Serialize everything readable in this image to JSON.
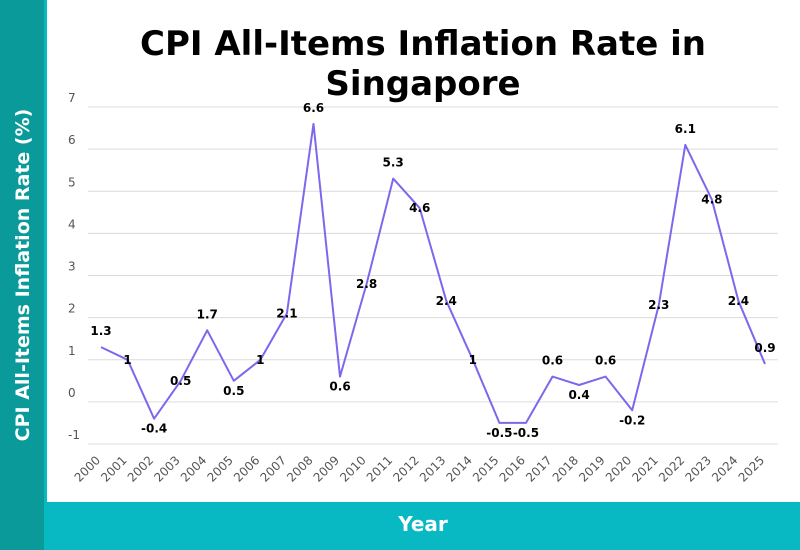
{
  "chart_data": {
    "type": "line",
    "title": "CPI All-Items Inflation Rate in Singapore",
    "xlabel": "Year",
    "ylabel": "CPI All-Items Inflation Rate (%)",
    "ylim": [
      -1,
      7
    ],
    "yticks": [
      "-1",
      "0",
      "1",
      "2",
      "3",
      "4",
      "5",
      "6",
      "7"
    ],
    "grid": true,
    "legend": "none",
    "colors": {
      "line": "#7b68ee",
      "grid": "#dcdcdc",
      "axis_text": "#555555",
      "label": "#000000"
    },
    "categories": [
      "2000",
      "2001",
      "2002",
      "2003",
      "2004",
      "2005",
      "2006",
      "2007",
      "2008",
      "2009",
      "2010",
      "2011",
      "2012",
      "2013",
      "2014",
      "2015",
      "2016",
      "2017",
      "2018",
      "2019",
      "2020",
      "2021",
      "2022",
      "2023",
      "2024",
      "2025"
    ],
    "series": [
      {
        "values": [
          1.3,
          1,
          -0.4,
          0.5,
          1.7,
          0.5,
          1,
          2.1,
          6.6,
          0.6,
          2.8,
          5.3,
          4.6,
          2.4,
          1,
          -0.5,
          -0.5,
          0.6,
          0.4,
          0.6,
          -0.2,
          2.3,
          6.1,
          4.8,
          2.4,
          0.9
        ],
        "labels": [
          "1.3",
          "1",
          "-0.4",
          "0.5",
          "1.7",
          "0.5",
          "1",
          "2.1",
          "6.6",
          "0.6",
          "2.8",
          "5.3",
          "4.6",
          "2.4",
          "1",
          "-0.5",
          "-0.5",
          "0.6",
          "0.4",
          "0.6",
          "-0.2",
          "2.3",
          "6.1",
          "4.8",
          "2.4",
          "0.9"
        ]
      }
    ]
  }
}
